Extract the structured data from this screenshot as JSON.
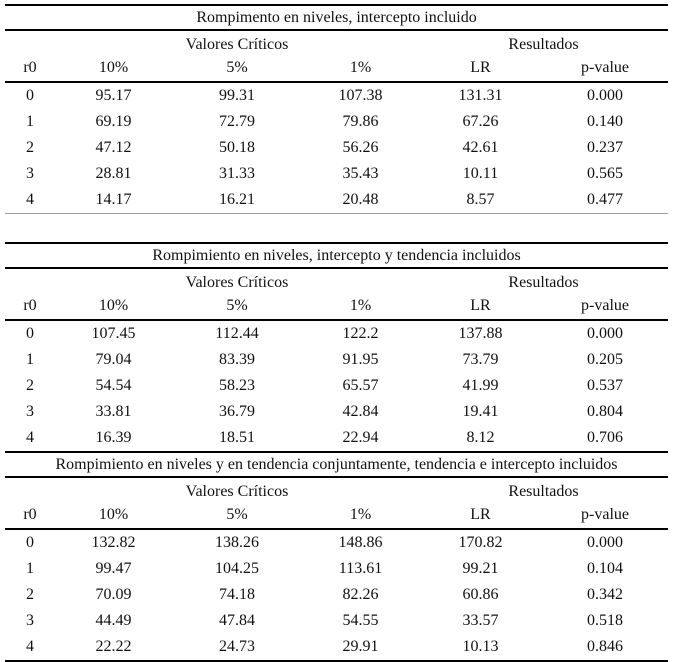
{
  "tables": [
    {
      "title": "Rompimento en niveles, intercepto incluido",
      "group_headers": {
        "critical": "Valores Críticos",
        "results": "Resultados"
      },
      "columns": [
        "r0",
        "10%",
        "5%",
        "1%",
        "LR",
        "p-value"
      ],
      "rows": [
        [
          "0",
          "95.17",
          "99.31",
          "107.38",
          "131.31",
          "0.000"
        ],
        [
          "1",
          "69.19",
          "72.79",
          "79.86",
          "67.26",
          "0.140"
        ],
        [
          "2",
          "47.12",
          "50.18",
          "56.26",
          "42.61",
          "0.237"
        ],
        [
          "3",
          "28.81",
          "31.33",
          "35.43",
          "10.11",
          "0.565"
        ],
        [
          "4",
          "14.17",
          "16.21",
          "20.48",
          "8.57",
          "0.477"
        ]
      ]
    },
    {
      "title": "Rompimiento en niveles, intercepto y tendencia incluidos",
      "group_headers": {
        "critical": "Valores Críticos",
        "results": "Resultados"
      },
      "columns": [
        "r0",
        "10%",
        "5%",
        "1%",
        "LR",
        "p-value"
      ],
      "rows": [
        [
          "0",
          "107.45",
          "112.44",
          "122.2",
          "137.88",
          "0.000"
        ],
        [
          "1",
          "79.04",
          "83.39",
          "91.95",
          "73.79",
          "0.205"
        ],
        [
          "2",
          "54.54",
          "58.23",
          "65.57",
          "41.99",
          "0.537"
        ],
        [
          "3",
          "33.81",
          "36.79",
          "42.84",
          "19.41",
          "0.804"
        ],
        [
          "4",
          "16.39",
          "18.51",
          "22.94",
          "8.12",
          "0.706"
        ]
      ]
    },
    {
      "title": "Rompimiento en niveles y en tendencia conjuntamente, tendencia e intercepto incluidos",
      "group_headers": {
        "critical": "Valores Críticos",
        "results": "Resultados"
      },
      "columns": [
        "r0",
        "10%",
        "5%",
        "1%",
        "LR",
        "p-value"
      ],
      "rows": [
        [
          "0",
          "132.82",
          "138.26",
          "148.86",
          "170.82",
          "0.000"
        ],
        [
          "1",
          "99.47",
          "104.25",
          "113.61",
          "99.21",
          "0.104"
        ],
        [
          "2",
          "70.09",
          "74.18",
          "82.26",
          "60.86",
          "0.342"
        ],
        [
          "3",
          "44.49",
          "47.84",
          "54.55",
          "33.57",
          "0.518"
        ],
        [
          "4",
          "22.22",
          "24.73",
          "29.91",
          "10.13",
          "0.846"
        ]
      ]
    }
  ]
}
